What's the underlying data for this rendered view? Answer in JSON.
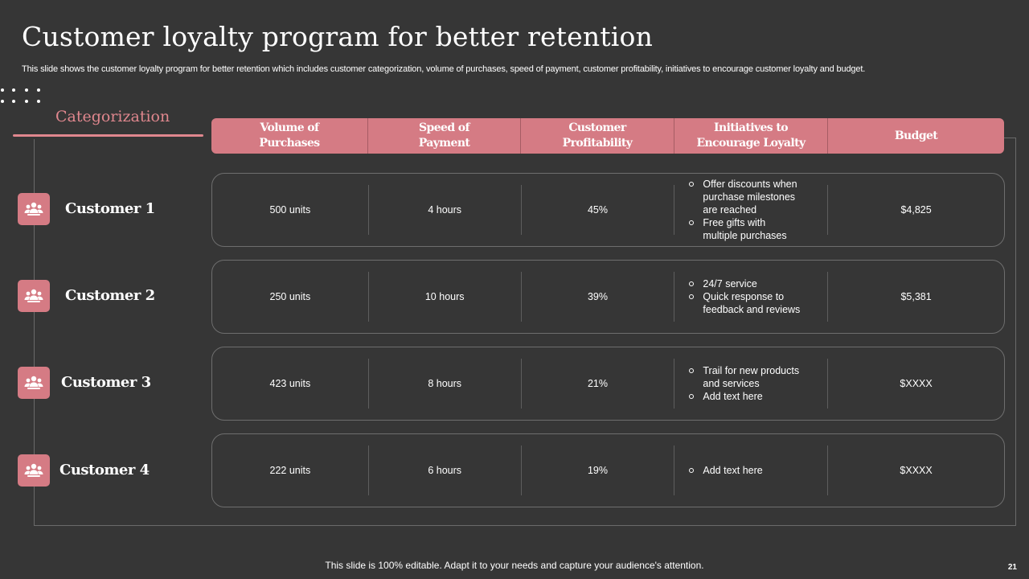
{
  "slide": {
    "title": "Customer loyalty program for better retention",
    "subtitle": "This slide shows the customer loyalty program for better retention which includes customer categorization, volume of purchases, speed of payment, customer profitability, initiatives to encourage customer loyalty and budget.",
    "section_label": "Categorization",
    "footer": "This slide is 100% editable. Adapt it to your needs and capture your audience's attention.",
    "page_number": "21"
  },
  "colors": {
    "background": "#363636",
    "accent": "#d57b84",
    "accent_text": "#e0878e"
  },
  "table": {
    "headers": [
      "Volume of\nPurchases",
      "Speed of\nPayment",
      "Customer\nProfitability",
      "Initiatives to\nEncourage Loyalty",
      "Budget"
    ],
    "rows": [
      {
        "customer": "Customer 1",
        "icon": "users-group-icon",
        "volume": "500 units",
        "speed": "4 hours",
        "profitability": "45%",
        "initiatives": [
          "Offer discounts when\npurchase milestones\nare reached",
          "Free gifts with\nmultiple purchases"
        ],
        "budget": "$4,825"
      },
      {
        "customer": "Customer 2",
        "icon": "users-group-icon",
        "volume": "250 units",
        "speed": "10 hours",
        "profitability": "39%",
        "initiatives": [
          "24/7 service",
          "Quick response to\nfeedback and reviews"
        ],
        "budget": "$5,381"
      },
      {
        "customer": "Customer 3",
        "icon": "users-group-icon",
        "volume": "423 units",
        "speed": "8 hours",
        "profitability": "21%",
        "initiatives": [
          "Trail for new products\nand services",
          "Add text here"
        ],
        "budget": "$XXXX"
      },
      {
        "customer": "Customer 4",
        "icon": "users-group-icon",
        "volume": "222 units",
        "speed": "6 hours",
        "profitability": "19%",
        "initiatives": [
          "Add text here"
        ],
        "budget": "$XXXX"
      }
    ]
  }
}
